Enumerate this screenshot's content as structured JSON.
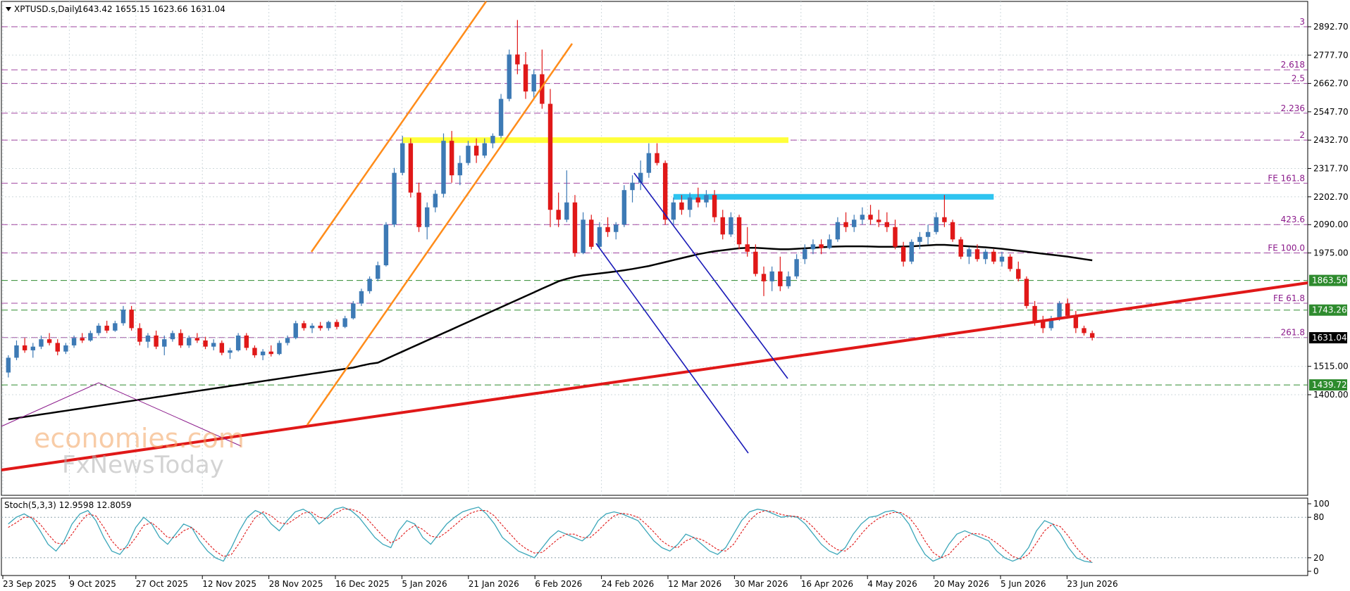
{
  "header": {
    "symbol": "XPTUSD.s,Daily",
    "ohlc": "1643.42 1655.15 1623.66 1631.04"
  },
  "watermark": {
    "brand": "economies.com",
    "brand2": "FxNewsToday"
  },
  "colors": {
    "bull": "#3d7ab5",
    "bear": "#e01818",
    "ma": "#000000",
    "trend_red": "#e01818",
    "channel_orange": "#ff8c1a",
    "channel_blue": "#1a1ab8",
    "zone_yellow": "#ffff3a",
    "zone_cyan": "#2ec4f0",
    "fib_line": "#8b1a8b",
    "support_line": "#2e8b2e",
    "stoch_main": "#3aa6b9",
    "stoch_signal": "#e01818"
  },
  "chart_data": {
    "type": "candlestick",
    "price_axis": {
      "ticks": [
        "2892.70",
        "2777.70",
        "2662.70",
        "2547.70",
        "2432.70",
        "2317.70",
        "2202.70",
        "2090.00",
        "1975.00",
        "1515.00",
        "1400.00"
      ],
      "tick_values": [
        2892.7,
        2777.7,
        2662.7,
        2547.7,
        2432.7,
        2317.7,
        2202.7,
        2090.0,
        1975.0,
        1515.0,
        1400.0
      ],
      "range": [
        1380,
        2980
      ]
    },
    "time_axis": {
      "labels": [
        "23 Sep 2025",
        "9 Oct 2025",
        "27 Oct 2025",
        "12 Nov 2025",
        "28 Nov 2025",
        "16 Dec 2025",
        "5 Jan 2026",
        "21 Jan 2026",
        "6 Feb 2026",
        "24 Feb 2026",
        "12 Mar 2026",
        "30 Mar 2026",
        "16 Apr 2026",
        "4 May 2026",
        "20 May 2026",
        "5 Jun 2026",
        "23 Jun 2026"
      ]
    },
    "fib_levels": [
      {
        "label": "3",
        "price": 2892.7
      },
      {
        "label": "2.618",
        "price": 2718
      },
      {
        "label": "2.5",
        "price": 2662.7
      },
      {
        "label": "2.236",
        "price": 2542
      },
      {
        "label": "2",
        "price": 2432.7
      },
      {
        "label": "FE 161.8",
        "price": 2258
      },
      {
        "label": "423.6",
        "price": 2090.0
      },
      {
        "label": "FE 100.0",
        "price": 1975.0
      },
      {
        "label": "FE 61.8",
        "price": 1771
      },
      {
        "label": "261.8",
        "price": 1632
      }
    ],
    "support_levels": [
      {
        "label": "1863.50",
        "price": 1863.5
      },
      {
        "label": "1743.26",
        "price": 1743.26
      },
      {
        "label": "1439.72",
        "price": 1439.72
      }
    ],
    "current_price": {
      "label": "1631.04",
      "price": 1631.04
    },
    "zones": [
      {
        "name": "yellow-resistance",
        "price": 2432.7,
        "from_bar": 48,
        "to_bar": 95
      },
      {
        "name": "cyan-resistance",
        "price": 2202.7,
        "from_bar": 81,
        "to_bar": 120
      }
    ],
    "candles": [
      [
        1490,
        1560,
        1470,
        1550
      ],
      [
        1550,
        1620,
        1540,
        1600
      ],
      [
        1600,
        1630,
        1570,
        1580
      ],
      [
        1580,
        1610,
        1550,
        1595
      ],
      [
        1595,
        1640,
        1585,
        1625
      ],
      [
        1625,
        1650,
        1600,
        1610
      ],
      [
        1610,
        1625,
        1560,
        1575
      ],
      [
        1575,
        1610,
        1565,
        1600
      ],
      [
        1600,
        1640,
        1590,
        1630
      ],
      [
        1630,
        1650,
        1610,
        1620
      ],
      [
        1620,
        1660,
        1615,
        1650
      ],
      [
        1650,
        1690,
        1640,
        1680
      ],
      [
        1680,
        1700,
        1650,
        1660
      ],
      [
        1660,
        1700,
        1655,
        1690
      ],
      [
        1690,
        1760,
        1680,
        1745
      ],
      [
        1745,
        1760,
        1660,
        1670
      ],
      [
        1670,
        1690,
        1600,
        1615
      ],
      [
        1615,
        1650,
        1590,
        1640
      ],
      [
        1640,
        1660,
        1585,
        1595
      ],
      [
        1595,
        1640,
        1560,
        1625
      ],
      [
        1625,
        1660,
        1615,
        1650
      ],
      [
        1650,
        1665,
        1590,
        1600
      ],
      [
        1600,
        1640,
        1590,
        1630
      ],
      [
        1630,
        1650,
        1610,
        1620
      ],
      [
        1620,
        1635,
        1585,
        1595
      ],
      [
        1595,
        1625,
        1580,
        1610
      ],
      [
        1610,
        1620,
        1560,
        1570
      ],
      [
        1570,
        1590,
        1545,
        1580
      ],
      [
        1580,
        1650,
        1575,
        1640
      ],
      [
        1640,
        1650,
        1580,
        1590
      ],
      [
        1590,
        1600,
        1550,
        1560
      ],
      [
        1560,
        1585,
        1540,
        1575
      ],
      [
        1575,
        1600,
        1555,
        1565
      ],
      [
        1565,
        1620,
        1560,
        1610
      ],
      [
        1610,
        1640,
        1600,
        1630
      ],
      [
        1630,
        1700,
        1625,
        1690
      ],
      [
        1690,
        1700,
        1660,
        1670
      ],
      [
        1670,
        1690,
        1650,
        1680
      ],
      [
        1680,
        1695,
        1660,
        1670
      ],
      [
        1670,
        1700,
        1660,
        1695
      ],
      [
        1695,
        1705,
        1665,
        1675
      ],
      [
        1675,
        1720,
        1670,
        1710
      ],
      [
        1710,
        1780,
        1705,
        1770
      ],
      [
        1770,
        1830,
        1760,
        1820
      ],
      [
        1820,
        1880,
        1810,
        1870
      ],
      [
        1870,
        1940,
        1860,
        1925
      ],
      [
        1925,
        2100,
        1920,
        2090
      ],
      [
        2090,
        2320,
        2080,
        2300
      ],
      [
        2300,
        2450,
        2290,
        2420
      ],
      [
        2420,
        2440,
        2200,
        2220
      ],
      [
        2220,
        2260,
        2060,
        2080
      ],
      [
        2080,
        2180,
        2030,
        2160
      ],
      [
        2160,
        2230,
        2140,
        2215
      ],
      [
        2215,
        2460,
        2200,
        2430
      ],
      [
        2430,
        2470,
        2260,
        2290
      ],
      [
        2290,
        2370,
        2250,
        2340
      ],
      [
        2340,
        2430,
        2330,
        2410
      ],
      [
        2410,
        2440,
        2340,
        2370
      ],
      [
        2370,
        2440,
        2360,
        2420
      ],
      [
        2420,
        2460,
        2400,
        2450
      ],
      [
        2450,
        2620,
        2440,
        2600
      ],
      [
        2600,
        2800,
        2590,
        2780
      ],
      [
        2780,
        2920,
        2700,
        2740
      ],
      [
        2740,
        2790,
        2600,
        2630
      ],
      [
        2630,
        2720,
        2600,
        2700
      ],
      [
        2700,
        2800,
        2560,
        2580
      ],
      [
        2580,
        2640,
        2080,
        2150
      ],
      [
        2150,
        2220,
        2080,
        2110
      ],
      [
        2110,
        2310,
        2100,
        2180
      ],
      [
        2180,
        2210,
        1960,
        1975
      ],
      [
        1975,
        2140,
        1970,
        2110
      ],
      [
        2110,
        2130,
        1990,
        2000
      ],
      [
        2000,
        2100,
        1995,
        2080
      ],
      [
        2080,
        2120,
        2040,
        2060
      ],
      [
        2060,
        2100,
        2030,
        2090
      ],
      [
        2090,
        2250,
        2080,
        2230
      ],
      [
        2230,
        2290,
        2180,
        2260
      ],
      [
        2260,
        2350,
        2230,
        2300
      ],
      [
        2300,
        2420,
        2280,
        2380
      ],
      [
        2380,
        2420,
        2330,
        2340
      ],
      [
        2340,
        2350,
        2090,
        2110
      ],
      [
        2110,
        2200,
        2090,
        2180
      ],
      [
        2180,
        2210,
        2130,
        2150
      ],
      [
        2150,
        2220,
        2120,
        2200
      ],
      [
        2200,
        2240,
        2160,
        2180
      ],
      [
        2180,
        2230,
        2160,
        2210
      ],
      [
        2210,
        2230,
        2100,
        2120
      ],
      [
        2120,
        2150,
        2030,
        2050
      ],
      [
        2050,
        2140,
        2040,
        2120
      ],
      [
        2120,
        2130,
        1990,
        2010
      ],
      [
        2010,
        2080,
        1960,
        1980
      ],
      [
        1980,
        2010,
        1880,
        1890
      ],
      [
        1890,
        1920,
        1800,
        1860
      ],
      [
        1860,
        1920,
        1820,
        1900
      ],
      [
        1900,
        1960,
        1820,
        1840
      ],
      [
        1840,
        1900,
        1830,
        1880
      ],
      [
        1880,
        1970,
        1870,
        1950
      ],
      [
        1950,
        2010,
        1930,
        1990
      ],
      [
        1990,
        2030,
        1970,
        2010
      ],
      [
        2010,
        2030,
        1970,
        1995
      ],
      [
        1995,
        2050,
        1990,
        2030
      ],
      [
        2030,
        2120,
        2020,
        2100
      ],
      [
        2100,
        2140,
        2060,
        2080
      ],
      [
        2080,
        2130,
        2060,
        2110
      ],
      [
        2110,
        2160,
        2090,
        2130
      ],
      [
        2130,
        2170,
        2090,
        2110
      ],
      [
        2110,
        2150,
        2080,
        2100
      ],
      [
        2100,
        2140,
        2060,
        2080
      ],
      [
        2080,
        2110,
        1990,
        2000
      ],
      [
        2000,
        2020,
        1920,
        1940
      ],
      [
        1940,
        2030,
        1930,
        2020
      ],
      [
        2020,
        2060,
        1990,
        2040
      ],
      [
        2040,
        2090,
        2010,
        2060
      ],
      [
        2060,
        2140,
        2050,
        2120
      ],
      [
        2120,
        2210,
        2080,
        2100
      ],
      [
        2100,
        2110,
        2020,
        2030
      ],
      [
        2030,
        2040,
        1950,
        1960
      ],
      [
        1960,
        2000,
        1930,
        1990
      ],
      [
        1990,
        2010,
        1940,
        1950
      ],
      [
        1950,
        1990,
        1930,
        1980
      ],
      [
        1980,
        1990,
        1930,
        1940
      ],
      [
        1940,
        1980,
        1920,
        1960
      ],
      [
        1960,
        1970,
        1900,
        1910
      ],
      [
        1910,
        1940,
        1860,
        1870
      ],
      [
        1870,
        1880,
        1750,
        1760
      ],
      [
        1760,
        1780,
        1680,
        1700
      ],
      [
        1700,
        1720,
        1650,
        1670
      ],
      [
        1670,
        1720,
        1660,
        1710
      ],
      [
        1710,
        1780,
        1700,
        1770
      ],
      [
        1770,
        1790,
        1710,
        1720
      ],
      [
        1720,
        1740,
        1650,
        1670
      ],
      [
        1670,
        1680,
        1640,
        1650
      ],
      [
        1650,
        1660,
        1620,
        1631
      ]
    ],
    "ma": [
      1300,
      1305,
      1310,
      1315,
      1320,
      1325,
      1330,
      1335,
      1340,
      1345,
      1350,
      1355,
      1360,
      1365,
      1370,
      1375,
      1380,
      1385,
      1390,
      1395,
      1400,
      1405,
      1410,
      1415,
      1420,
      1425,
      1430,
      1435,
      1440,
      1445,
      1450,
      1455,
      1460,
      1465,
      1470,
      1475,
      1480,
      1485,
      1490,
      1495,
      1500,
      1505,
      1510,
      1518,
      1525,
      1530,
      1545,
      1560,
      1575,
      1590,
      1605,
      1620,
      1635,
      1650,
      1665,
      1680,
      1695,
      1710,
      1725,
      1740,
      1755,
      1770,
      1785,
      1800,
      1815,
      1830,
      1845,
      1860,
      1870,
      1878,
      1884,
      1888,
      1892,
      1896,
      1900,
      1905,
      1910,
      1916,
      1922,
      1930,
      1938,
      1946,
      1954,
      1962,
      1970,
      1976,
      1982,
      1986,
      1990,
      1994,
      1996,
      1996,
      1994,
      1992,
      1990,
      1990,
      1992,
      1994,
      1996,
      1998,
      2000,
      2001,
      2002,
      2002,
      2002,
      2001,
      2000,
      2000,
      2000,
      2001,
      2002,
      2004,
      2006,
      2008,
      2008,
      2006,
      2004,
      2002,
      2000,
      1998,
      1995,
      1992,
      1988,
      1984,
      1980,
      1976,
      1972,
      1968,
      1964,
      1960,
      1955,
      1950,
      1945
    ],
    "stochastic": {
      "label": "Stoch(5,3,3) 12.9598 12.8059",
      "axis": [
        "100",
        "80",
        "20",
        "0"
      ],
      "main": [
        70,
        80,
        85,
        78,
        60,
        40,
        30,
        45,
        70,
        85,
        90,
        75,
        50,
        30,
        25,
        40,
        65,
        80,
        70,
        50,
        40,
        55,
        70,
        65,
        45,
        30,
        20,
        15,
        35,
        60,
        80,
        90,
        85,
        70,
        60,
        75,
        88,
        92,
        85,
        70,
        80,
        92,
        95,
        90,
        80,
        65,
        50,
        40,
        35,
        60,
        75,
        70,
        50,
        40,
        55,
        70,
        80,
        88,
        92,
        95,
        85,
        70,
        50,
        40,
        30,
        25,
        20,
        35,
        50,
        60,
        55,
        50,
        45,
        55,
        75,
        85,
        88,
        85,
        80,
        75,
        60,
        45,
        35,
        30,
        40,
        55,
        50,
        40,
        30,
        25,
        35,
        55,
        75,
        88,
        92,
        90,
        85,
        80,
        82,
        80,
        70,
        55,
        40,
        30,
        25,
        35,
        55,
        70,
        80,
        82,
        88,
        90,
        85,
        70,
        45,
        25,
        15,
        20,
        40,
        55,
        60,
        55,
        50,
        45,
        30,
        20,
        15,
        20,
        35,
        60,
        75,
        70,
        55,
        35,
        20,
        15,
        13
      ],
      "signal": [
        65,
        72,
        80,
        80,
        70,
        55,
        42,
        40,
        55,
        72,
        85,
        82,
        65,
        45,
        32,
        35,
        50,
        68,
        72,
        62,
        50,
        50,
        60,
        65,
        55,
        42,
        30,
        22,
        25,
        42,
        62,
        80,
        88,
        82,
        72,
        70,
        78,
        86,
        88,
        80,
        78,
        85,
        92,
        92,
        88,
        78,
        65,
        52,
        42,
        48,
        60,
        68,
        62,
        52,
        50,
        58,
        68,
        78,
        86,
        90,
        90,
        82,
        68,
        55,
        42,
        33,
        27,
        28,
        38,
        48,
        55,
        55,
        50,
        50,
        60,
        72,
        82,
        86,
        84,
        80,
        70,
        58,
        45,
        37,
        35,
        45,
        50,
        47,
        40,
        32,
        30,
        40,
        58,
        75,
        86,
        90,
        88,
        84,
        82,
        81,
        76,
        65,
        52,
        40,
        32,
        30,
        40,
        55,
        68,
        77,
        83,
        87,
        87,
        80,
        65,
        45,
        28,
        20,
        25,
        38,
        50,
        56,
        55,
        50,
        42,
        32,
        22,
        18,
        25,
        42,
        60,
        70,
        66,
        52,
        35,
        22,
        13
      ]
    }
  }
}
